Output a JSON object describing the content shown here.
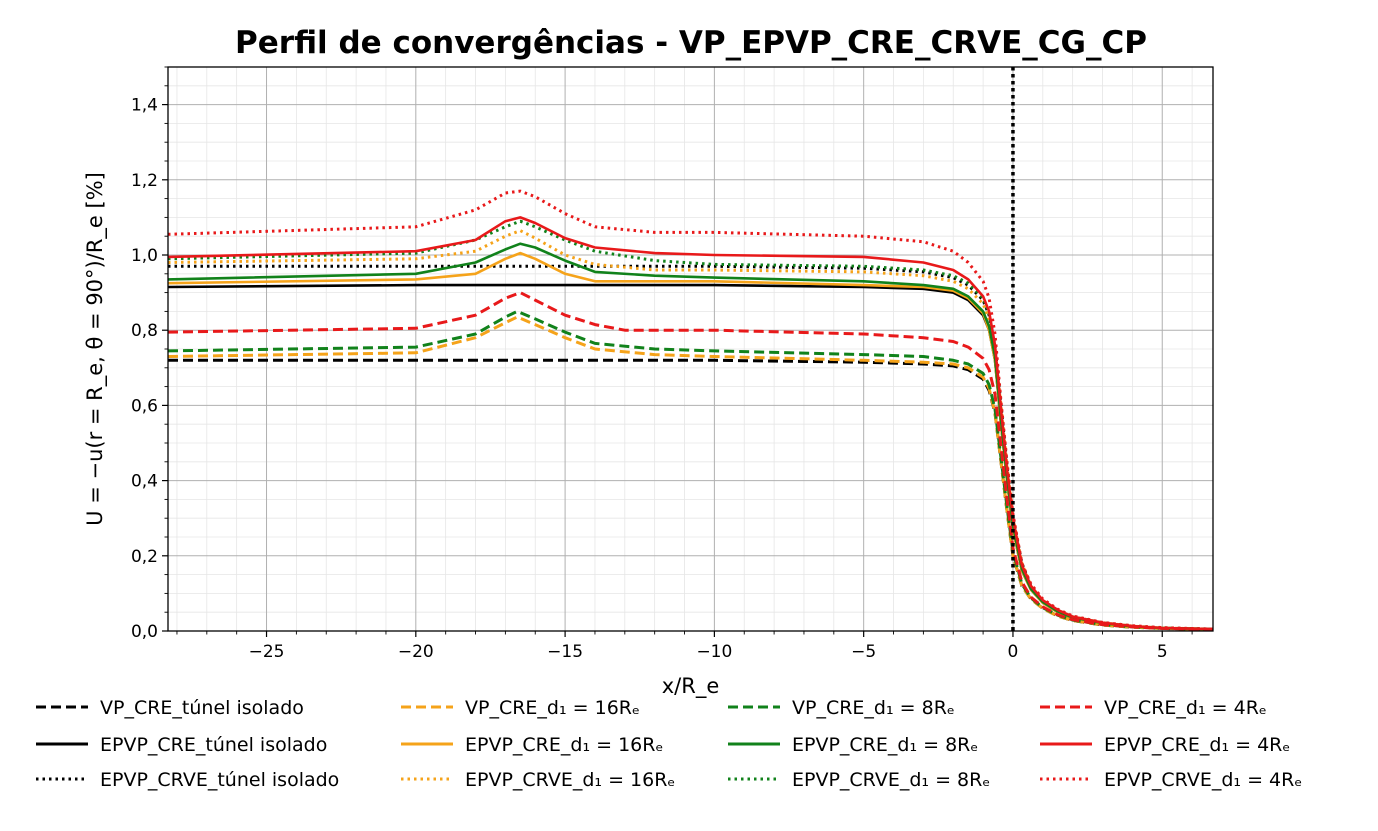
{
  "chart_data": {
    "type": "line",
    "title": "Perfil de convergências - VP_EPVP_CRE_CRVE_CG_CP",
    "xlabel": "x/R_e",
    "ylabel": "U = −u(r = R_e, θ = 90°)/R_e [%]",
    "xlim": [
      -28.3,
      6.7
    ],
    "ylim": [
      0.0,
      1.5
    ],
    "xticks": [
      -25,
      -20,
      -15,
      -10,
      -5,
      0,
      5
    ],
    "xtick_labels": [
      "−25",
      "−20",
      "−15",
      "−10",
      "−5",
      "0",
      "5"
    ],
    "yticks": [
      0.0,
      0.2,
      0.4,
      0.6,
      0.8,
      1.0,
      1.2,
      1.4
    ],
    "ytick_labels": [
      "0,0",
      "0,2",
      "0,4",
      "0,6",
      "0,8",
      "1,0",
      "1,2",
      "1,4"
    ],
    "grid": true,
    "minor_grid": true,
    "legend_placement": "below",
    "vertical_reference_line": {
      "x": 0,
      "style": "dotted",
      "color": "#000000"
    },
    "series": [
      {
        "name": "VP_CRE_túnel isolado",
        "color": "#000000",
        "style": "dashed",
        "x": [
          -28.3,
          -20,
          -17,
          -15,
          -10,
          -5,
          -3,
          -2,
          -1.5,
          -1,
          -0.8,
          -0.6,
          -0.4,
          -0.2,
          0,
          0.3,
          0.6,
          1,
          1.5,
          2,
          3,
          4,
          5,
          6.7
        ],
        "y": [
          0.72,
          0.72,
          0.72,
          0.72,
          0.72,
          0.715,
          0.71,
          0.705,
          0.695,
          0.67,
          0.64,
          0.58,
          0.45,
          0.32,
          0.2,
          0.12,
          0.085,
          0.06,
          0.04,
          0.028,
          0.016,
          0.01,
          0.007,
          0.004
        ]
      },
      {
        "name": "EPVP_CRE_túnel isolado",
        "color": "#000000",
        "style": "solid",
        "x": [
          -28.3,
          -20,
          -15,
          -10,
          -5,
          -3,
          -2,
          -1.5,
          -1,
          -0.8,
          -0.6,
          -0.4,
          -0.2,
          0,
          0.3,
          0.6,
          1,
          1.5,
          2,
          3,
          4,
          5,
          6.7
        ],
        "y": [
          0.915,
          0.92,
          0.92,
          0.92,
          0.915,
          0.91,
          0.9,
          0.88,
          0.84,
          0.8,
          0.72,
          0.55,
          0.4,
          0.27,
          0.16,
          0.11,
          0.075,
          0.05,
          0.035,
          0.02,
          0.012,
          0.008,
          0.005
        ]
      },
      {
        "name": "EPVP_CRVE_túnel isolado",
        "color": "#000000",
        "style": "dotted",
        "x": [
          -28.3,
          -20,
          -15,
          -10,
          -5,
          -3,
          -2,
          -1.5,
          -1,
          -0.8,
          -0.6,
          -0.4,
          -0.2,
          0,
          0.3,
          0.6,
          1,
          1.5,
          2,
          3,
          4,
          5,
          6.7
        ],
        "y": [
          0.97,
          0.97,
          0.97,
          0.97,
          0.965,
          0.955,
          0.94,
          0.92,
          0.88,
          0.84,
          0.76,
          0.6,
          0.44,
          0.3,
          0.18,
          0.12,
          0.08,
          0.055,
          0.038,
          0.022,
          0.013,
          0.008,
          0.005
        ]
      },
      {
        "name": "VP_CRE_d₁ = 16Rₑ",
        "color": "#f5a31a",
        "style": "dashed",
        "x": [
          -28.3,
          -20,
          -18,
          -17,
          -16.6,
          -16,
          -15,
          -14,
          -12,
          -10,
          -5,
          -3,
          -2,
          -1.5,
          -1,
          -0.8,
          -0.6,
          -0.4,
          -0.2,
          0,
          0.3,
          0.6,
          1,
          1.5,
          2,
          3,
          4,
          5,
          6.7
        ],
        "y": [
          0.73,
          0.74,
          0.78,
          0.82,
          0.835,
          0.815,
          0.78,
          0.75,
          0.735,
          0.73,
          0.72,
          0.715,
          0.71,
          0.7,
          0.675,
          0.645,
          0.58,
          0.45,
          0.32,
          0.2,
          0.12,
          0.085,
          0.06,
          0.04,
          0.028,
          0.016,
          0.01,
          0.007,
          0.004
        ]
      },
      {
        "name": "EPVP_CRE_d₁ = 16Rₑ",
        "color": "#f5a31a",
        "style": "solid",
        "x": [
          -28.3,
          -20,
          -18,
          -17,
          -16.5,
          -16,
          -15,
          -14,
          -12,
          -10,
          -5,
          -3,
          -2,
          -1.5,
          -1,
          -0.8,
          -0.6,
          -0.4,
          -0.2,
          0,
          0.3,
          0.6,
          1,
          1.5,
          2,
          3,
          4,
          5,
          6.7
        ],
        "y": [
          0.925,
          0.935,
          0.95,
          0.99,
          1.005,
          0.99,
          0.95,
          0.93,
          0.93,
          0.93,
          0.92,
          0.915,
          0.905,
          0.885,
          0.845,
          0.8,
          0.72,
          0.55,
          0.4,
          0.27,
          0.16,
          0.11,
          0.075,
          0.05,
          0.035,
          0.02,
          0.012,
          0.008,
          0.005
        ]
      },
      {
        "name": "EPVP_CRVE_d₁ = 16Rₑ",
        "color": "#f5a31a",
        "style": "dotted",
        "x": [
          -28.3,
          -20,
          -18,
          -17,
          -16.5,
          -16,
          -15,
          -14,
          -12,
          -10,
          -5,
          -3,
          -2,
          -1.5,
          -1,
          -0.8,
          -0.6,
          -0.4,
          -0.2,
          0,
          0.3,
          0.6,
          1,
          1.5,
          2,
          3,
          4,
          5,
          6.7
        ],
        "y": [
          0.98,
          0.99,
          1.01,
          1.05,
          1.065,
          1.045,
          1.0,
          0.975,
          0.96,
          0.96,
          0.955,
          0.945,
          0.93,
          0.91,
          0.87,
          0.83,
          0.75,
          0.6,
          0.44,
          0.3,
          0.18,
          0.12,
          0.08,
          0.055,
          0.038,
          0.022,
          0.013,
          0.008,
          0.005
        ]
      },
      {
        "name": "VP_CRE_d₁ = 8Rₑ",
        "color": "#11821b",
        "style": "dashed",
        "x": [
          -28.3,
          -20,
          -18,
          -17,
          -16.6,
          -16,
          -15,
          -14,
          -12,
          -10,
          -5,
          -3,
          -2,
          -1.5,
          -1,
          -0.8,
          -0.6,
          -0.4,
          -0.2,
          0,
          0.3,
          0.6,
          1,
          1.5,
          2,
          3,
          4,
          5,
          6.7
        ],
        "y": [
          0.745,
          0.755,
          0.79,
          0.835,
          0.85,
          0.83,
          0.795,
          0.765,
          0.75,
          0.745,
          0.735,
          0.73,
          0.72,
          0.71,
          0.685,
          0.655,
          0.59,
          0.46,
          0.33,
          0.21,
          0.125,
          0.088,
          0.062,
          0.042,
          0.029,
          0.017,
          0.011,
          0.007,
          0.004
        ]
      },
      {
        "name": "EPVP_CRE_d₁ = 8Rₑ",
        "color": "#11821b",
        "style": "solid",
        "x": [
          -28.3,
          -20,
          -18,
          -17,
          -16.5,
          -16,
          -15,
          -14,
          -12,
          -10,
          -5,
          -3,
          -2,
          -1.5,
          -1,
          -0.8,
          -0.6,
          -0.4,
          -0.2,
          0,
          0.3,
          0.6,
          1,
          1.5,
          2,
          3,
          4,
          5,
          6.7
        ],
        "y": [
          0.935,
          0.95,
          0.98,
          1.015,
          1.03,
          1.02,
          0.985,
          0.955,
          0.945,
          0.94,
          0.93,
          0.92,
          0.91,
          0.89,
          0.85,
          0.81,
          0.73,
          0.56,
          0.41,
          0.28,
          0.165,
          0.112,
          0.077,
          0.052,
          0.036,
          0.021,
          0.012,
          0.008,
          0.005
        ]
      },
      {
        "name": "EPVP_CRVE_d₁ = 8Rₑ",
        "color": "#11821b",
        "style": "dotted",
        "x": [
          -28.3,
          -20,
          -18,
          -17,
          -16.5,
          -16,
          -15,
          -14,
          -12,
          -10,
          -5,
          -3,
          -2,
          -1.5,
          -1,
          -0.8,
          -0.6,
          -0.4,
          -0.2,
          0,
          0.3,
          0.6,
          1,
          1.5,
          2,
          3,
          4,
          5,
          6.7
        ],
        "y": [
          0.99,
          1.005,
          1.04,
          1.075,
          1.09,
          1.075,
          1.04,
          1.01,
          0.985,
          0.975,
          0.97,
          0.96,
          0.945,
          0.925,
          0.885,
          0.845,
          0.76,
          0.6,
          0.44,
          0.3,
          0.18,
          0.12,
          0.08,
          0.055,
          0.038,
          0.022,
          0.013,
          0.008,
          0.005
        ]
      },
      {
        "name": "VP_CRE_d₁ = 4Rₑ",
        "color": "#e8191a",
        "style": "dashed",
        "x": [
          -28.3,
          -20,
          -18,
          -17,
          -16.5,
          -16,
          -15,
          -14,
          -13,
          -10,
          -5,
          -3,
          -2,
          -1.5,
          -1,
          -0.8,
          -0.6,
          -0.4,
          -0.2,
          0,
          0.3,
          0.6,
          1,
          1.5,
          2,
          3,
          4,
          5,
          6.7
        ],
        "y": [
          0.795,
          0.805,
          0.84,
          0.885,
          0.9,
          0.88,
          0.84,
          0.815,
          0.8,
          0.8,
          0.79,
          0.78,
          0.77,
          0.755,
          0.725,
          0.695,
          0.63,
          0.49,
          0.35,
          0.22,
          0.13,
          0.09,
          0.064,
          0.043,
          0.03,
          0.017,
          0.011,
          0.007,
          0.004
        ]
      },
      {
        "name": "EPVP_CRE_d₁ = 4Rₑ",
        "color": "#e8191a",
        "style": "solid",
        "x": [
          -28.3,
          -20,
          -18,
          -17,
          -16.5,
          -16,
          -15,
          -14,
          -12,
          -10,
          -5,
          -3,
          -2,
          -1.5,
          -1,
          -0.8,
          -0.6,
          -0.4,
          -0.2,
          0,
          0.3,
          0.6,
          1,
          1.5,
          2,
          3,
          4,
          5,
          6.7
        ],
        "y": [
          0.995,
          1.01,
          1.04,
          1.09,
          1.1,
          1.085,
          1.045,
          1.02,
          1.005,
          1.0,
          0.995,
          0.98,
          0.96,
          0.935,
          0.89,
          0.85,
          0.76,
          0.59,
          0.43,
          0.3,
          0.175,
          0.12,
          0.082,
          0.056,
          0.038,
          0.022,
          0.013,
          0.008,
          0.005
        ]
      },
      {
        "name": "EPVP_CRVE_d₁ = 4Rₑ",
        "color": "#e8191a",
        "style": "dotted",
        "x": [
          -28.3,
          -20,
          -18,
          -17,
          -16.5,
          -16,
          -15,
          -14,
          -12,
          -10,
          -5,
          -3,
          -2,
          -1.5,
          -1,
          -0.8,
          -0.6,
          -0.4,
          -0.2,
          0,
          0.3,
          0.6,
          1,
          1.5,
          2,
          3,
          4,
          5,
          6.7
        ],
        "y": [
          1.055,
          1.075,
          1.12,
          1.165,
          1.17,
          1.155,
          1.11,
          1.075,
          1.06,
          1.06,
          1.05,
          1.035,
          1.01,
          0.98,
          0.93,
          0.885,
          0.79,
          0.61,
          0.45,
          0.31,
          0.18,
          0.125,
          0.085,
          0.058,
          0.04,
          0.023,
          0.014,
          0.009,
          0.005
        ]
      }
    ]
  }
}
